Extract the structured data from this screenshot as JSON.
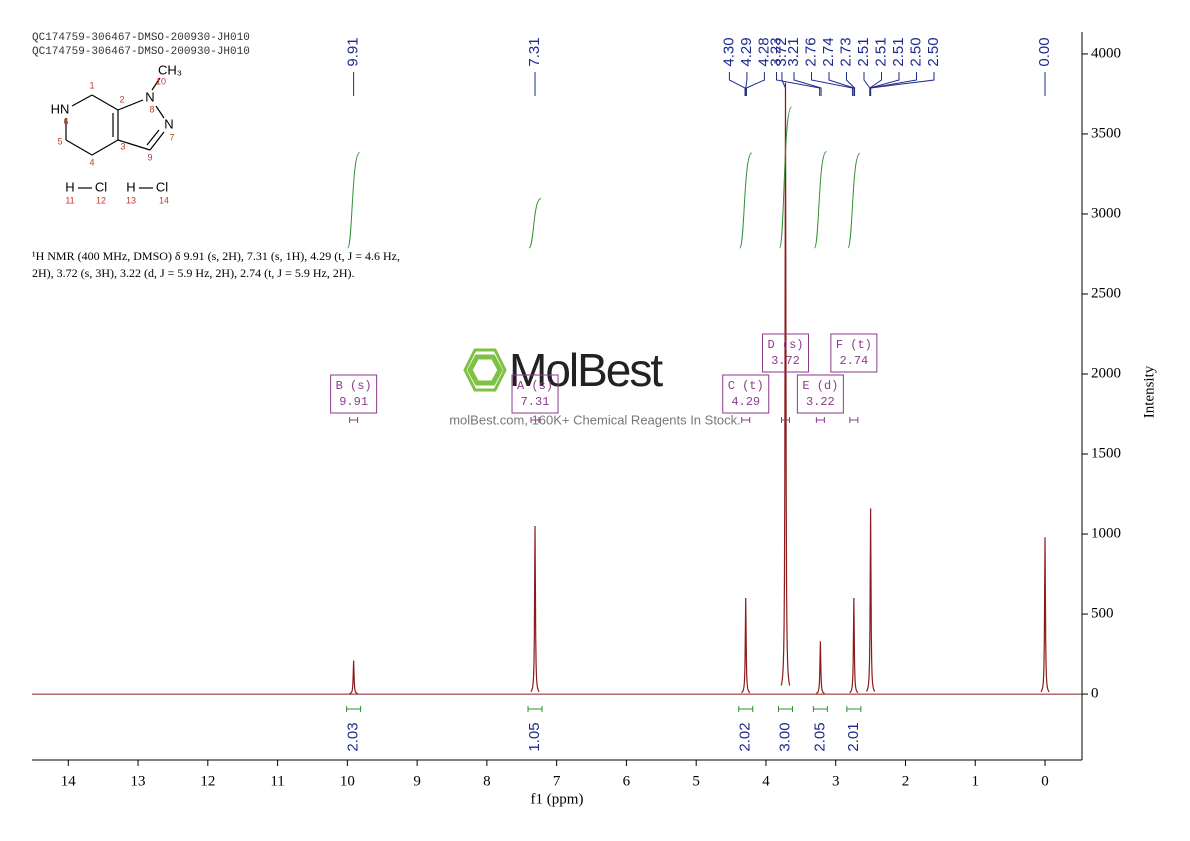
{
  "header": {
    "lines": [
      "QC174759-306467-DMSO-200930-JH010",
      "QC174759-306467-DMSO-200930-JH010"
    ]
  },
  "structure": {
    "atoms": [
      "HN",
      "N",
      "N",
      "CH₃",
      "H",
      "Cl",
      "H",
      "Cl"
    ],
    "numbers": [
      "1",
      "2",
      "3",
      "4",
      "5",
      "6",
      "7",
      "8",
      "9",
      "10",
      "11",
      "12",
      "13",
      "14"
    ]
  },
  "description": [
    "¹H NMR (400 MHz, DMSO) δ 9.91 (s, 2H), 7.31 (s, 1H), 4.29 (t, J = 4.6 Hz,",
    "2H), 3.72 (s, 3H), 3.22 (d, J = 5.9 Hz, 2H), 2.74 (t, J = 5.9 Hz, 2H)."
  ],
  "watermark": {
    "brand": "MolBest",
    "tagline": "molBest.com, 160K+ Chemical Reagents In Stock."
  },
  "chart_data": {
    "type": "nmr",
    "x_label": "f1 (ppm)",
    "y_label": "Intensity",
    "xlim": [
      14.52,
      -0.53
    ],
    "xticks": [
      14,
      13,
      12,
      11,
      10,
      9,
      8,
      7,
      6,
      5,
      4,
      3,
      2,
      1,
      0
    ],
    "ylim": [
      -412,
      4137
    ],
    "yticks": [
      0,
      500,
      1000,
      1500,
      2000,
      2500,
      3000,
      3500,
      4000
    ],
    "color": "#8b1a1a",
    "peaks": {
      "x": [
        9.91,
        7.31,
        4.29,
        3.72,
        3.22,
        2.74,
        2.5,
        0
      ],
      "values": [
        210,
        1050,
        600,
        3820,
        330,
        600,
        1160,
        980
      ]
    },
    "peak_labels": [
      "9.91",
      "7.31",
      "4.30",
      "4.29",
      "4.28",
      "3.72",
      "3.23",
      "3.21",
      "2.76",
      "2.74",
      "2.73",
      "2.51",
      "2.51",
      "2.51",
      "2.50",
      "2.50",
      "0.00"
    ],
    "peak_label_color": "#1c2a8c",
    "integrals": {
      "x": [
        9.91,
        7.31,
        4.29,
        3.72,
        3.22,
        2.74
      ],
      "values": [
        2.03,
        1.05,
        2.02,
        3,
        2.05,
        2.01
      ],
      "value_labels": [
        "2.03",
        "1.05",
        "2.02",
        "3.00",
        "2.05",
        "2.01"
      ],
      "color": "#2f8f2f",
      "label_color": "#1c2a8c"
    },
    "multiplets": [
      {
        "label": "B (s)",
        "shift": "9.91"
      },
      {
        "label": "A (s)",
        "shift": "7.31"
      },
      {
        "label": "C (t)",
        "shift": "4.29"
      },
      {
        "label": "D (s)",
        "shift": "3.72"
      },
      {
        "label": "E (d)",
        "shift": "3.22"
      },
      {
        "label": "F (t)",
        "shift": "2.74"
      }
    ],
    "multiplet_color": "#8b3a8b"
  }
}
